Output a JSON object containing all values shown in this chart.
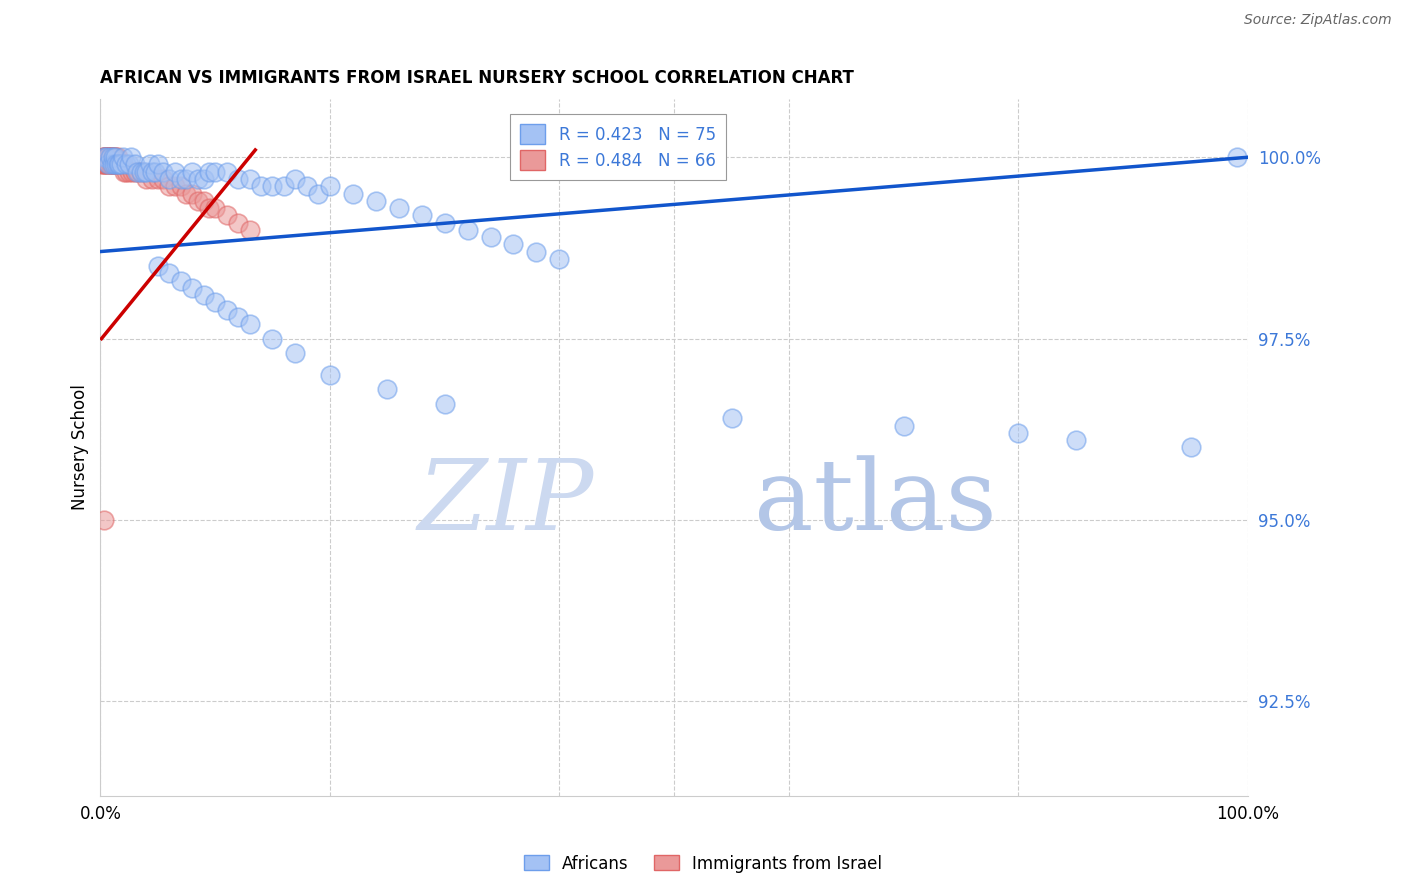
{
  "title": "AFRICAN VS IMMIGRANTS FROM ISRAEL NURSERY SCHOOL CORRELATION CHART",
  "source": "Source: ZipAtlas.com",
  "ylabel": "Nursery School",
  "ytick_vals": [
    1.0,
    0.975,
    0.95,
    0.925
  ],
  "ytick_labels": [
    "100.0%",
    "97.5%",
    "95.0%",
    "92.5%"
  ],
  "xlim": [
    0.0,
    1.0
  ],
  "ylim": [
    0.912,
    1.008
  ],
  "blue_color": "#a4c2f4",
  "blue_edge_color": "#6d9eeb",
  "pink_color": "#ea9999",
  "pink_edge_color": "#e06666",
  "blue_line_color": "#1155cc",
  "pink_line_color": "#cc0000",
  "legend1": "R = 0.423   N = 75",
  "legend2": "R = 0.484   N = 66",
  "watermark_zip": "ZIP",
  "watermark_atlas": "atlas",
  "africans_x": [
    0.003,
    0.005,
    0.007,
    0.008,
    0.01,
    0.011,
    0.012,
    0.013,
    0.014,
    0.015,
    0.016,
    0.018,
    0.02,
    0.022,
    0.025,
    0.027,
    0.03,
    0.032,
    0.035,
    0.038,
    0.04,
    0.043,
    0.045,
    0.048,
    0.05,
    0.055,
    0.06,
    0.065,
    0.07,
    0.075,
    0.08,
    0.085,
    0.09,
    0.095,
    0.1,
    0.11,
    0.12,
    0.13,
    0.14,
    0.15,
    0.16,
    0.17,
    0.18,
    0.19,
    0.2,
    0.22,
    0.24,
    0.26,
    0.28,
    0.3,
    0.32,
    0.34,
    0.36,
    0.38,
    0.4,
    0.05,
    0.06,
    0.07,
    0.08,
    0.09,
    0.1,
    0.11,
    0.12,
    0.13,
    0.15,
    0.17,
    0.2,
    0.25,
    0.3,
    0.55,
    0.7,
    0.8,
    0.85,
    0.95,
    0.99
  ],
  "africans_y": [
    1.0,
    1.0,
    0.999,
    1.0,
    0.999,
    1.0,
    0.999,
    1.0,
    0.999,
    0.999,
    0.999,
    0.999,
    1.0,
    0.999,
    0.999,
    1.0,
    0.999,
    0.998,
    0.998,
    0.998,
    0.998,
    0.999,
    0.998,
    0.998,
    0.999,
    0.998,
    0.997,
    0.998,
    0.997,
    0.997,
    0.998,
    0.997,
    0.997,
    0.998,
    0.998,
    0.998,
    0.997,
    0.997,
    0.996,
    0.996,
    0.996,
    0.997,
    0.996,
    0.995,
    0.996,
    0.995,
    0.994,
    0.993,
    0.992,
    0.991,
    0.99,
    0.989,
    0.988,
    0.987,
    0.986,
    0.985,
    0.984,
    0.983,
    0.982,
    0.981,
    0.98,
    0.979,
    0.978,
    0.977,
    0.975,
    0.973,
    0.97,
    0.968,
    0.966,
    0.964,
    0.963,
    0.962,
    0.961,
    0.96,
    1.0
  ],
  "israel_x": [
    0.001,
    0.002,
    0.002,
    0.003,
    0.003,
    0.003,
    0.004,
    0.004,
    0.004,
    0.005,
    0.005,
    0.005,
    0.006,
    0.006,
    0.006,
    0.007,
    0.007,
    0.007,
    0.008,
    0.008,
    0.008,
    0.009,
    0.009,
    0.009,
    0.01,
    0.01,
    0.01,
    0.011,
    0.011,
    0.012,
    0.012,
    0.013,
    0.013,
    0.014,
    0.014,
    0.015,
    0.015,
    0.016,
    0.017,
    0.018,
    0.019,
    0.02,
    0.021,
    0.022,
    0.025,
    0.028,
    0.03,
    0.033,
    0.035,
    0.04,
    0.045,
    0.05,
    0.055,
    0.06,
    0.065,
    0.07,
    0.075,
    0.08,
    0.085,
    0.09,
    0.095,
    0.1,
    0.11,
    0.12,
    0.13,
    0.003
  ],
  "israel_y": [
    0.999,
    0.999,
    1.0,
    1.0,
    0.999,
    1.0,
    1.0,
    0.999,
    1.0,
    1.0,
    0.999,
    1.0,
    1.0,
    0.999,
    1.0,
    1.0,
    0.999,
    1.0,
    1.0,
    0.999,
    1.0,
    0.999,
    1.0,
    0.999,
    1.0,
    0.999,
    1.0,
    0.999,
    1.0,
    0.999,
    1.0,
    0.999,
    1.0,
    0.999,
    1.0,
    0.999,
    1.0,
    0.999,
    0.999,
    0.999,
    0.999,
    0.999,
    0.998,
    0.998,
    0.998,
    0.998,
    0.998,
    0.998,
    0.998,
    0.997,
    0.997,
    0.997,
    0.997,
    0.996,
    0.996,
    0.996,
    0.995,
    0.995,
    0.994,
    0.994,
    0.993,
    0.993,
    0.992,
    0.991,
    0.99,
    0.95
  ]
}
